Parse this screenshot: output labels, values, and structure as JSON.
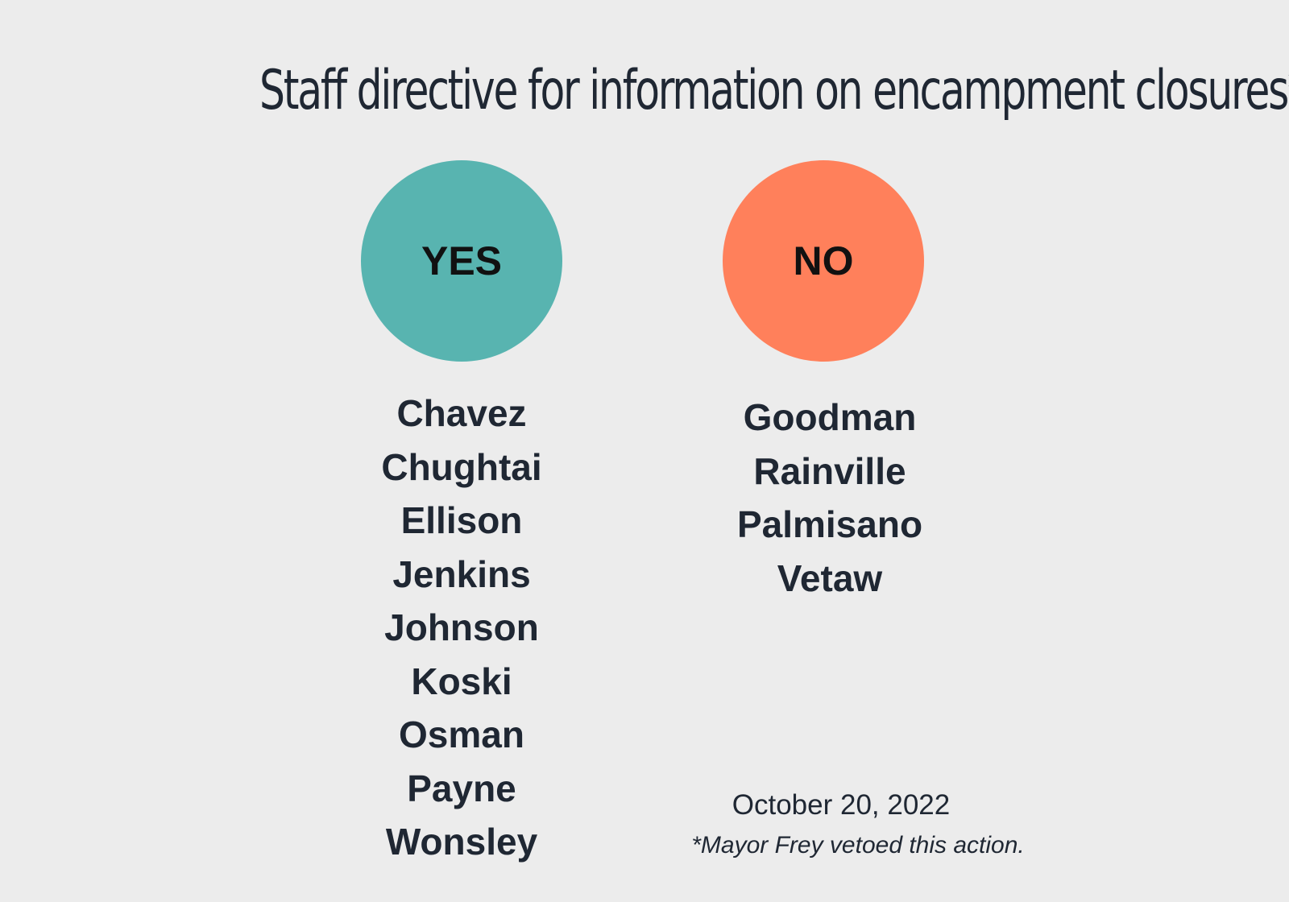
{
  "title": "Staff directive for information on encampment closures*",
  "yes": {
    "label": "YES",
    "color": "#58b4b0",
    "names": [
      "Chavez",
      "Chughtai",
      "Ellison",
      "Jenkins",
      "Johnson",
      "Koski",
      "Osman",
      "Payne",
      "Wonsley"
    ]
  },
  "no": {
    "label": "NO",
    "color": "#ff805b",
    "names": [
      "Goodman",
      "Rainville",
      "Palmisano",
      "Vetaw"
    ]
  },
  "date": "October 20, 2022",
  "footnote": "*Mayor Frey vetoed this action."
}
